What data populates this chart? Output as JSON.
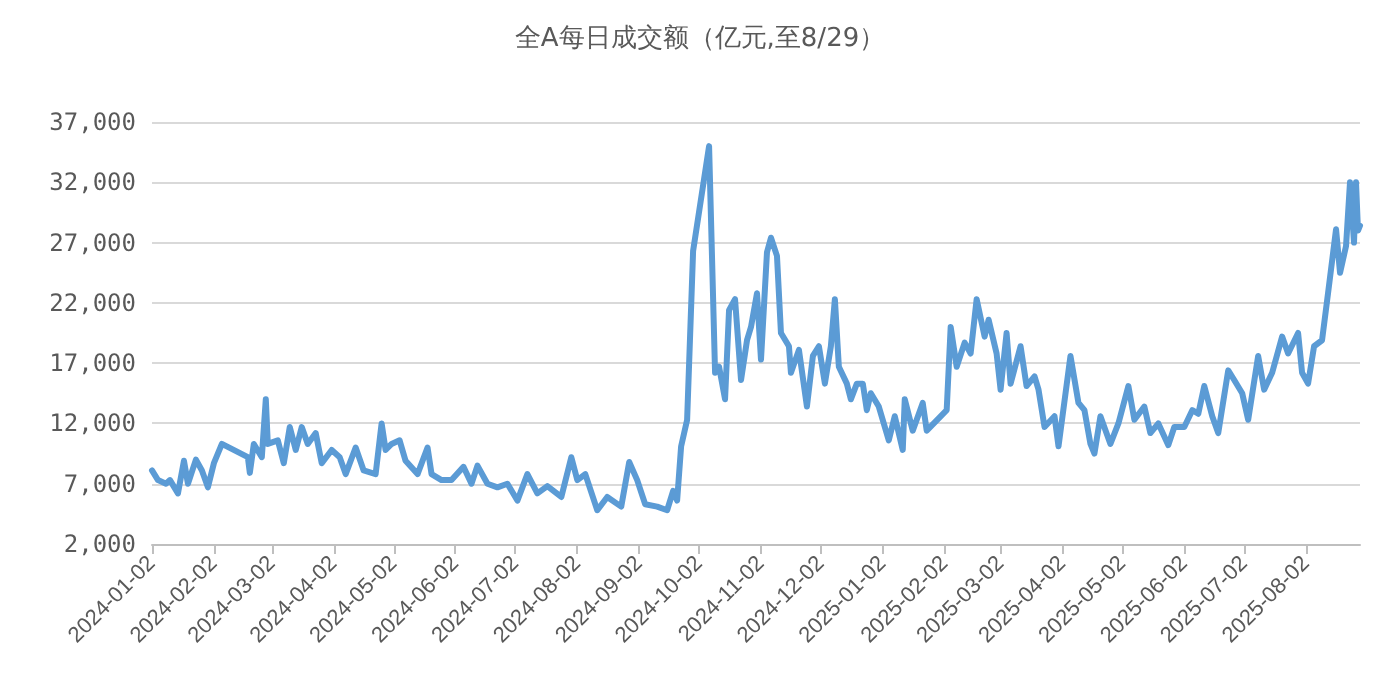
{
  "chart_data": {
    "type": "line",
    "title": "全A每日成交额（亿元,至8/29）",
    "x": [
      "2024-01-02",
      "2024-01-05",
      "2024-01-09",
      "2024-01-11",
      "2024-01-15",
      "2024-01-18",
      "2024-01-20",
      "2024-01-24",
      "2024-01-27",
      "2024-01-30",
      "2024-02-02",
      "2024-02-06",
      "2024-02-19",
      "2024-02-20",
      "2024-02-22",
      "2024-02-26",
      "2024-02-28",
      "2024-02-29",
      "2024-03-05",
      "2024-03-08",
      "2024-03-11",
      "2024-03-14",
      "2024-03-17",
      "2024-03-20",
      "2024-03-24",
      "2024-03-27",
      "2024-04-01",
      "2024-04-05",
      "2024-04-08",
      "2024-04-13",
      "2024-04-17",
      "2024-04-23",
      "2024-04-26",
      "2024-04-28",
      "2024-05-01",
      "2024-05-05",
      "2024-05-08",
      "2024-05-14",
      "2024-05-19",
      "2024-05-21",
      "2024-05-26",
      "2024-05-31",
      "2024-06-06",
      "2024-06-10",
      "2024-06-13",
      "2024-06-18",
      "2024-06-23",
      "2024-06-28",
      "2024-07-03",
      "2024-07-08",
      "2024-07-13",
      "2024-07-18",
      "2024-07-25",
      "2024-07-30",
      "2024-08-02",
      "2024-08-06",
      "2024-08-12",
      "2024-08-17",
      "2024-08-24",
      "2024-08-28",
      "2024-09-01",
      "2024-09-05",
      "2024-09-11",
      "2024-09-16",
      "2024-09-19",
      "2024-09-21",
      "2024-09-23",
      "2024-09-26",
      "2024-09-29",
      "2024-10-07",
      "2024-10-10",
      "2024-10-12",
      "2024-10-15",
      "2024-10-17",
      "2024-10-20",
      "2024-10-23",
      "2024-10-26",
      "2024-10-28",
      "2024-10-31",
      "2024-11-02",
      "2024-11-05",
      "2024-11-07",
      "2024-11-10",
      "2024-11-12",
      "2024-11-16",
      "2024-11-17",
      "2024-11-21",
      "2024-11-25",
      "2024-11-28",
      "2024-12-01",
      "2024-12-04",
      "2024-12-07",
      "2024-12-09",
      "2024-12-11",
      "2024-12-15",
      "2024-12-17",
      "2024-12-20",
      "2024-12-23",
      "2024-12-25",
      "2024-12-27",
      "2024-12-31",
      "2025-01-05",
      "2025-01-08",
      "2025-01-12",
      "2025-01-13",
      "2025-01-17",
      "2025-01-22",
      "2025-01-24",
      "2025-02-03",
      "2025-02-05",
      "2025-02-08",
      "2025-02-12",
      "2025-02-15",
      "2025-02-18",
      "2025-02-22",
      "2025-02-24",
      "2025-02-28",
      "2025-03-02",
      "2025-03-05",
      "2025-03-07",
      "2025-03-12",
      "2025-03-15",
      "2025-03-19",
      "2025-03-21",
      "2025-03-24",
      "2025-03-29",
      "2025-03-31",
      "2025-04-06",
      "2025-04-10",
      "2025-04-13",
      "2025-04-16",
      "2025-04-18",
      "2025-04-21",
      "2025-04-26",
      "2025-04-30",
      "2025-05-05",
      "2025-05-08",
      "2025-05-13",
      "2025-05-16",
      "2025-05-20",
      "2025-05-25",
      "2025-05-28",
      "2025-06-02",
      "2025-06-06",
      "2025-06-09",
      "2025-06-12",
      "2025-06-16",
      "2025-06-19",
      "2025-06-24",
      "2025-06-27",
      "2025-07-01",
      "2025-07-04",
      "2025-07-09",
      "2025-07-12",
      "2025-07-16",
      "2025-07-21",
      "2025-07-24",
      "2025-07-29",
      "2025-07-31",
      "2025-08-03",
      "2025-08-06",
      "2025-08-10",
      "2025-08-13",
      "2025-08-17",
      "2025-08-19",
      "2025-08-22",
      "2025-08-24",
      "2025-08-26",
      "2025-08-27",
      "2025-08-28",
      "2025-08-29"
    ],
    "series": [
      {
        "color": "#5b9bd5",
        "values": [
          8100,
          7300,
          7000,
          7300,
          6200,
          8900,
          7000,
          9000,
          8100,
          6700,
          8700,
          10300,
          9200,
          7900,
          10300,
          9200,
          14000,
          10300,
          10600,
          8700,
          11700,
          9800,
          11700,
          10300,
          11200,
          8700,
          9800,
          9200,
          7800,
          10000,
          8100,
          7800,
          12000,
          9800,
          10300,
          10600,
          8900,
          7800,
          10000,
          7800,
          7300,
          7300,
          8400,
          7000,
          8500,
          7000,
          6700,
          7000,
          5600,
          7800,
          6200,
          6800,
          5900,
          9200,
          7300,
          7800,
          4800,
          5900,
          5100,
          8800,
          7300,
          5300,
          5100,
          4800,
          6400,
          5600,
          10100,
          12300,
          26300,
          35000,
          16200,
          16700,
          14000,
          21400,
          22300,
          15600,
          18900,
          20000,
          22800,
          17300,
          26200,
          27400,
          25900,
          19500,
          18400,
          16200,
          18100,
          13400,
          17600,
          18400,
          15300,
          18400,
          22300,
          16700,
          15300,
          14000,
          15300,
          15300,
          13100,
          14500,
          13400,
          10600,
          12600,
          9800,
          14000,
          11400,
          13700,
          11400,
          13100,
          20000,
          16700,
          18700,
          17800,
          22300,
          19200,
          20600,
          17800,
          14800,
          19500,
          15300,
          18400,
          15100,
          15900,
          14800,
          11700,
          12600,
          10100,
          17600,
          13700,
          13100,
          10300,
          9500,
          12600,
          10300,
          12000,
          15100,
          12300,
          13400,
          11200,
          12000,
          10200,
          11700,
          11700,
          13100,
          12800,
          15100,
          12600,
          11200,
          16400,
          15600,
          14500,
          12300,
          17600,
          14800,
          16200,
          19200,
          17800,
          19500,
          16200,
          15300,
          18400,
          18900,
          22800,
          28100,
          24500,
          26700,
          32000,
          27000,
          32000,
          28000,
          28400
        ]
      }
    ],
    "xlim": [
      "2024-01-02",
      "2025-08-29"
    ],
    "xticks": [
      "2024-01-02",
      "2024-02-02",
      "2024-03-02",
      "2024-04-02",
      "2024-05-02",
      "2024-06-02",
      "2024-07-02",
      "2024-08-02",
      "2024-09-02",
      "2024-10-02",
      "2024-11-02",
      "2024-12-02",
      "2025-01-02",
      "2025-02-02",
      "2025-03-02",
      "2025-04-02",
      "2025-05-02",
      "2025-06-02",
      "2025-07-02",
      "2025-08-02"
    ],
    "ylim": [
      2000,
      37000
    ],
    "yticks": [
      {
        "value": 2000,
        "label": "2,000"
      },
      {
        "value": 7000,
        "label": "7,000"
      },
      {
        "value": 12000,
        "label": "12,000"
      },
      {
        "value": 17000,
        "label": "17,000"
      },
      {
        "value": 22000,
        "label": "22,000"
      },
      {
        "value": 27000,
        "label": "27,000"
      },
      {
        "value": 32000,
        "label": "32,000"
      },
      {
        "value": 37000,
        "label": "37,000"
      }
    ],
    "grid": "y",
    "marker": "none",
    "line_style": "solid"
  }
}
